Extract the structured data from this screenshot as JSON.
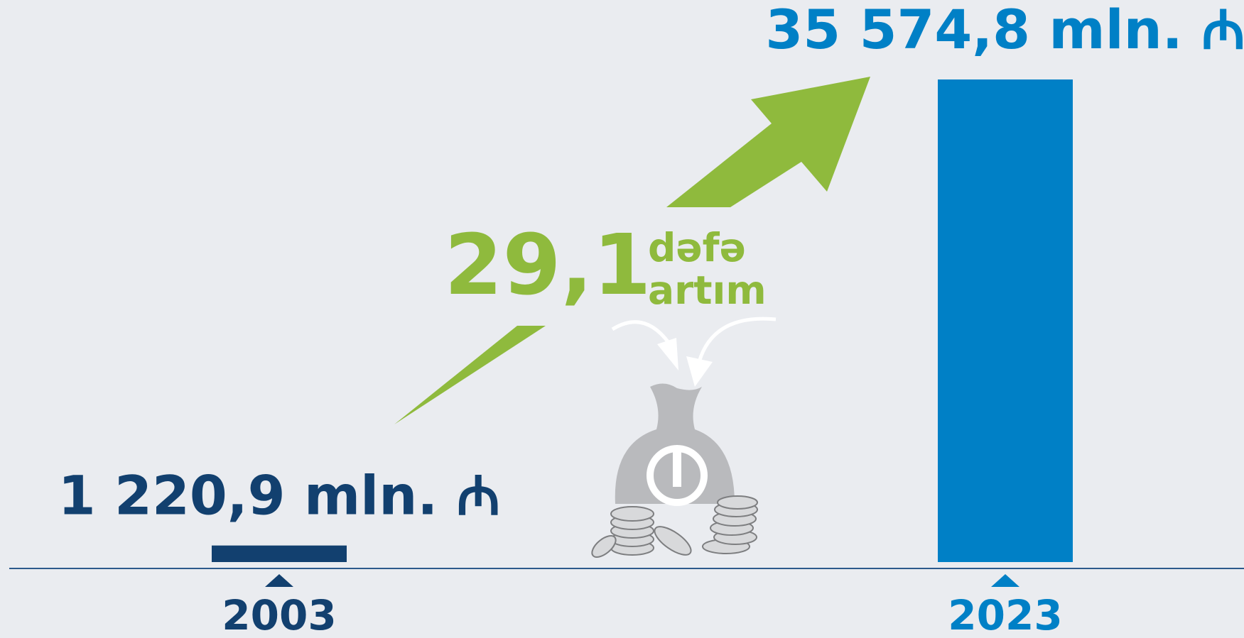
{
  "chart_data": {
    "type": "bar",
    "categories": [
      "2003",
      "2023"
    ],
    "values": [
      1220.9,
      35574.8
    ],
    "value_labels": [
      "1 220,9 mln. ₼",
      "35 574,8 mln. ₼"
    ],
    "colors": [
      "#12406f",
      "#0080c6"
    ],
    "annotation": {
      "value": "29,1",
      "line1": "dəfə",
      "line2": "artım",
      "color": "#8fba3d"
    }
  }
}
